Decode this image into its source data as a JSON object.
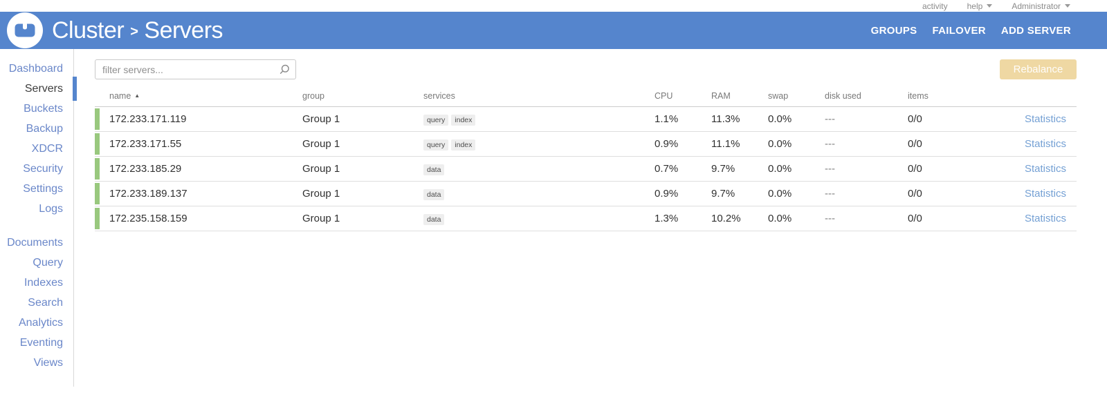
{
  "topbar": {
    "activity_label": "activity",
    "help_label": "help",
    "user_label": "Administrator"
  },
  "header": {
    "title_left": "Cluster",
    "title_separator": ">",
    "title_right": "Servers",
    "menu_items": [
      {
        "label": "GROUPS"
      },
      {
        "label": "FAILOVER"
      },
      {
        "label": "ADD SERVER"
      }
    ]
  },
  "sidebar": {
    "groups": [
      {
        "items": [
          {
            "label": "Dashboard",
            "selected": false
          },
          {
            "label": "Servers",
            "selected": true
          },
          {
            "label": "Buckets",
            "selected": false
          },
          {
            "label": "Backup",
            "selected": false
          },
          {
            "label": "XDCR",
            "selected": false
          },
          {
            "label": "Security",
            "selected": false
          },
          {
            "label": "Settings",
            "selected": false
          },
          {
            "label": "Logs",
            "selected": false
          }
        ]
      },
      {
        "items": [
          {
            "label": "Documents",
            "selected": false
          },
          {
            "label": "Query",
            "selected": false
          },
          {
            "label": "Indexes",
            "selected": false
          },
          {
            "label": "Search",
            "selected": false
          },
          {
            "label": "Analytics",
            "selected": false
          },
          {
            "label": "Eventing",
            "selected": false
          },
          {
            "label": "Views",
            "selected": false
          }
        ]
      }
    ]
  },
  "toolbar": {
    "filter_placeholder": "filter servers...",
    "rebalance_label": "Rebalance"
  },
  "servers_table": {
    "columns": {
      "name": "name",
      "group": "group",
      "services": "services",
      "cpu": "CPU",
      "ram": "RAM",
      "swap": "swap",
      "disk_used": "disk used",
      "items": "items"
    },
    "sort": {
      "column": "name",
      "direction": "asc",
      "icon": "▲"
    },
    "rows": [
      {
        "name": "172.233.171.119",
        "group": "Group 1",
        "services": [
          "query",
          "index"
        ],
        "cpu": "1.1%",
        "ram": "11.3%",
        "swap": "0.0%",
        "disk_used": "---",
        "items": "0/0",
        "statistics_label": "Statistics"
      },
      {
        "name": "172.233.171.55",
        "group": "Group 1",
        "services": [
          "query",
          "index"
        ],
        "cpu": "0.9%",
        "ram": "11.1%",
        "swap": "0.0%",
        "disk_used": "---",
        "items": "0/0",
        "statistics_label": "Statistics"
      },
      {
        "name": "172.233.185.29",
        "group": "Group 1",
        "services": [
          "data"
        ],
        "cpu": "0.7%",
        "ram": "9.7%",
        "swap": "0.0%",
        "disk_used": "---",
        "items": "0/0",
        "statistics_label": "Statistics"
      },
      {
        "name": "172.233.189.137",
        "group": "Group 1",
        "services": [
          "data"
        ],
        "cpu": "0.9%",
        "ram": "9.7%",
        "swap": "0.0%",
        "disk_used": "---",
        "items": "0/0",
        "statistics_label": "Statistics"
      },
      {
        "name": "172.235.158.159",
        "group": "Group 1",
        "services": [
          "data"
        ],
        "cpu": "1.3%",
        "ram": "10.2%",
        "swap": "0.0%",
        "disk_used": "---",
        "items": "0/0",
        "statistics_label": "Statistics"
      }
    ]
  },
  "colors": {
    "header_blue": "#5585cd",
    "sidebar_link_blue": "#6a87c9",
    "statistics_link_blue": "#74a0d4",
    "healthy_green": "#99c87e",
    "rebalance_disabled_tan": "#efd8a3"
  }
}
